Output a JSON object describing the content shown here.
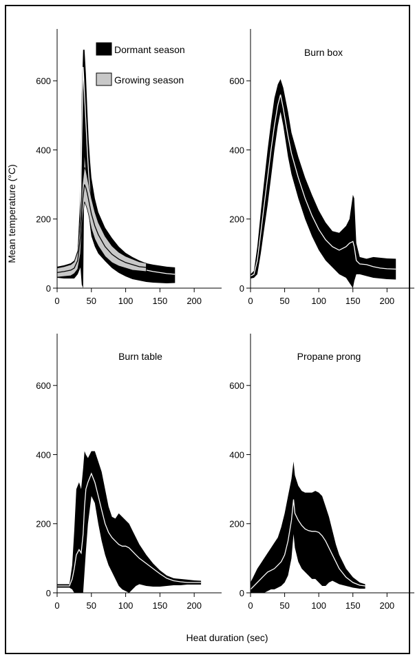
{
  "figure": {
    "ylabel": "Mean temperature (°C)",
    "xlabel": "Heat duration (sec)"
  },
  "legend": [
    {
      "label": "Dormant season",
      "color": "#000000"
    },
    {
      "label": "Growing season",
      "color": "#c8c8c8"
    }
  ],
  "chart_data": [
    {
      "type": "area",
      "title": "",
      "xlim": [
        0,
        240
      ],
      "ylim": [
        0,
        750
      ],
      "xticks": [
        0,
        50,
        100,
        150,
        200
      ],
      "yticks": [
        0,
        200,
        400,
        600
      ],
      "series": [
        {
          "name": "Dormant season",
          "band_color": "#000000",
          "line_color": "#ffffff",
          "x": [
            0,
            10,
            20,
            25,
            30,
            34,
            36,
            38,
            40,
            42,
            44,
            46,
            48,
            50,
            55,
            60,
            70,
            80,
            90,
            100,
            110,
            120,
            130,
            140,
            150,
            160,
            172
          ],
          "mean": [
            45,
            47,
            50,
            55,
            80,
            200,
            440,
            640,
            560,
            480,
            400,
            330,
            280,
            240,
            190,
            160,
            125,
            100,
            82,
            70,
            62,
            56,
            52,
            48,
            45,
            42,
            40
          ],
          "upper": [
            62,
            66,
            72,
            80,
            110,
            280,
            560,
            690,
            690,
            620,
            520,
            430,
            370,
            320,
            260,
            220,
            175,
            145,
            120,
            102,
            90,
            80,
            72,
            68,
            65,
            62,
            60
          ],
          "lower": [
            30,
            28,
            28,
            28,
            40,
            60,
            10,
            0,
            380,
            330,
            270,
            220,
            180,
            150,
            120,
            100,
            78,
            58,
            44,
            34,
            26,
            22,
            18,
            16,
            15,
            14,
            15
          ]
        },
        {
          "name": "Growing season",
          "band_color": "#c8c8c8",
          "line_color": "#000000",
          "x": [
            0,
            10,
            20,
            25,
            30,
            34,
            37,
            40,
            42,
            44,
            46,
            48,
            50,
            55,
            60,
            70,
            80,
            90,
            100,
            110,
            120,
            130
          ],
          "mean": [
            45,
            48,
            52,
            58,
            80,
            150,
            250,
            300,
            290,
            275,
            255,
            235,
            215,
            180,
            155,
            120,
            98,
            84,
            74,
            68,
            62,
            60
          ],
          "upper": [
            58,
            62,
            68,
            76,
            105,
            200,
            300,
            350,
            340,
            320,
            300,
            280,
            260,
            220,
            190,
            150,
            122,
            104,
            92,
            84,
            76,
            72
          ],
          "lower": [
            32,
            34,
            36,
            42,
            55,
            100,
            200,
            250,
            240,
            228,
            212,
            192,
            172,
            142,
            122,
            92,
            74,
            64,
            58,
            52,
            50,
            48
          ]
        }
      ]
    },
    {
      "type": "area",
      "title": "Burn box",
      "xlim": [
        0,
        240
      ],
      "ylim": [
        0,
        750
      ],
      "xticks": [
        0,
        50,
        100,
        150,
        200
      ],
      "yticks": [
        0,
        200,
        400,
        600
      ],
      "series": [
        {
          "band_color": "#000000",
          "line_color": "#ffffff",
          "x": [
            0,
            5,
            10,
            15,
            20,
            25,
            30,
            35,
            40,
            44,
            48,
            55,
            60,
            70,
            80,
            90,
            100,
            110,
            120,
            130,
            140,
            145,
            150,
            152,
            155,
            160,
            170,
            180,
            190,
            200,
            213
          ],
          "mean": [
            35,
            40,
            80,
            160,
            240,
            320,
            400,
            470,
            530,
            560,
            520,
            440,
            390,
            320,
            260,
            210,
            170,
            140,
            120,
            110,
            120,
            130,
            135,
            120,
            80,
            70,
            68,
            62,
            58,
            56,
            55
          ],
          "upper": [
            40,
            50,
            120,
            220,
            310,
            400,
            480,
            550,
            590,
            605,
            580,
            510,
            450,
            380,
            320,
            270,
            225,
            190,
            165,
            160,
            180,
            200,
            270,
            260,
            130,
            90,
            85,
            90,
            88,
            86,
            85
          ],
          "lower": [
            28,
            30,
            40,
            100,
            170,
            240,
            320,
            400,
            470,
            510,
            470,
            380,
            330,
            260,
            200,
            150,
            110,
            80,
            60,
            40,
            30,
            15,
            0,
            20,
            40,
            40,
            35,
            30,
            28,
            26,
            25
          ]
        }
      ]
    },
    {
      "type": "area",
      "title": "Burn table",
      "xlim": [
        0,
        240
      ],
      "ylim": [
        0,
        750
      ],
      "xticks": [
        0,
        50,
        100,
        150,
        200
      ],
      "yticks": [
        0,
        200,
        400,
        600
      ],
      "series": [
        {
          "band_color": "#000000",
          "line_color": "#ffffff",
          "x": [
            0,
            10,
            18,
            22,
            25,
            28,
            32,
            35,
            38,
            40,
            42,
            45,
            50,
            55,
            60,
            65,
            70,
            75,
            80,
            85,
            90,
            95,
            100,
            105,
            110,
            115,
            120,
            130,
            140,
            150,
            160,
            170,
            180,
            190,
            200,
            210
          ],
          "mean": [
            20,
            20,
            20,
            40,
            70,
            110,
            125,
            115,
            170,
            250,
            300,
            320,
            345,
            320,
            280,
            240,
            200,
            175,
            160,
            150,
            140,
            135,
            135,
            130,
            120,
            110,
            100,
            85,
            70,
            55,
            42,
            35,
            32,
            30,
            30,
            30
          ],
          "upper": [
            25,
            25,
            25,
            80,
            180,
            300,
            320,
            300,
            360,
            410,
            400,
            390,
            410,
            410,
            380,
            350,
            300,
            250,
            220,
            215,
            230,
            220,
            210,
            200,
            180,
            160,
            140,
            110,
            85,
            65,
            50,
            42,
            40,
            38,
            36,
            35
          ],
          "lower": [
            15,
            15,
            15,
            10,
            0,
            0,
            0,
            0,
            0,
            60,
            120,
            200,
            280,
            260,
            200,
            150,
            110,
            80,
            60,
            40,
            20,
            10,
            5,
            0,
            10,
            20,
            25,
            20,
            18,
            18,
            20,
            22,
            22,
            24,
            24,
            24
          ]
        }
      ]
    },
    {
      "type": "area",
      "title": "Propane prong",
      "xlim": [
        0,
        240
      ],
      "ylim": [
        0,
        750
      ],
      "xticks": [
        0,
        50,
        100,
        150,
        200
      ],
      "yticks": [
        0,
        200,
        400,
        600
      ],
      "series": [
        {
          "band_color": "#000000",
          "line_color": "#ffffff",
          "x": [
            0,
            5,
            10,
            15,
            20,
            25,
            30,
            35,
            40,
            45,
            50,
            55,
            60,
            63,
            65,
            70,
            75,
            80,
            85,
            90,
            95,
            100,
            105,
            110,
            115,
            120,
            125,
            130,
            140,
            150,
            160,
            168
          ],
          "mean": [
            10,
            20,
            30,
            40,
            50,
            60,
            65,
            70,
            80,
            90,
            110,
            150,
            210,
            270,
            230,
            210,
            195,
            185,
            180,
            178,
            178,
            175,
            165,
            150,
            130,
            110,
            90,
            70,
            45,
            30,
            22,
            20
          ],
          "upper": [
            30,
            50,
            70,
            85,
            100,
            115,
            130,
            145,
            160,
            190,
            230,
            280,
            330,
            380,
            340,
            310,
            295,
            290,
            290,
            290,
            295,
            290,
            280,
            250,
            220,
            180,
            140,
            110,
            70,
            45,
            30,
            25
          ],
          "lower": [
            0,
            0,
            0,
            0,
            0,
            5,
            10,
            10,
            15,
            20,
            30,
            50,
            100,
            170,
            130,
            90,
            70,
            60,
            50,
            40,
            40,
            30,
            20,
            20,
            30,
            35,
            30,
            25,
            20,
            15,
            12,
            12
          ]
        }
      ]
    }
  ]
}
